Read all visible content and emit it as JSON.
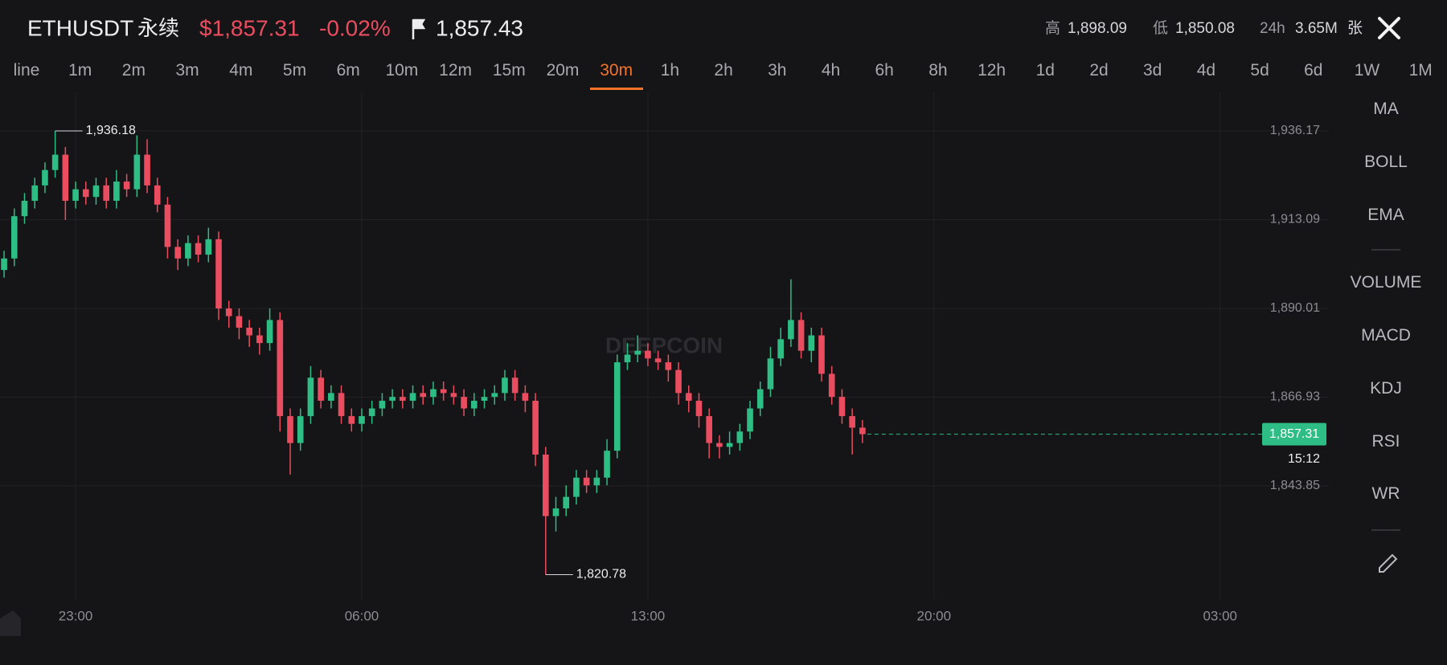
{
  "header": {
    "symbol": "ETHUSDT",
    "contract": "永续",
    "price": "$1,857.31",
    "change": "-0.02%",
    "mark_price": "1,857.43",
    "high_label": "高",
    "high": "1,898.09",
    "low_label": "低",
    "low": "1,850.08",
    "volume_label": "24h",
    "volume": "3.65M",
    "volume_unit": "张"
  },
  "timeframes": [
    "line",
    "1m",
    "2m",
    "3m",
    "4m",
    "5m",
    "6m",
    "10m",
    "12m",
    "15m",
    "20m",
    "30m",
    "1h",
    "2h",
    "3h",
    "4h",
    "6h",
    "8h",
    "12h",
    "1d",
    "2d",
    "3d",
    "4d",
    "5d",
    "6d",
    "1W",
    "1M"
  ],
  "active_timeframe": "30m",
  "indicators": [
    "MA",
    "BOLL",
    "EMA",
    "VOLUME",
    "MACD",
    "KDJ",
    "RSI",
    "WR"
  ],
  "chart_data": {
    "type": "candlestick",
    "watermark": "DEEPCOIN",
    "up_color": "#2ebd85",
    "down_color": "#ea4d5f",
    "grid": true,
    "xlim": [
      21.15,
      53.66
    ],
    "ylim": [
      1814.4,
      1946.2
    ],
    "xticks": [
      {
        "value": 23,
        "label": "23:00"
      },
      {
        "value": 30,
        "label": "06:00"
      },
      {
        "value": 37,
        "label": "13:00"
      },
      {
        "value": 44,
        "label": "20:00"
      },
      {
        "value": 51,
        "label": "03:00"
      }
    ],
    "yticks": [
      {
        "value": 1936.17,
        "label": "1,936.17"
      },
      {
        "value": 1913.09,
        "label": "1,913.09"
      },
      {
        "value": 1890.01,
        "label": "1,890.01"
      },
      {
        "value": 1866.93,
        "label": "1,866.93"
      },
      {
        "value": 1843.85,
        "label": "1,843.85"
      }
    ],
    "x": [
      21.25,
      21.5,
      21.75,
      22,
      22.25,
      22.5,
      22.75,
      23,
      23.25,
      23.5,
      23.75,
      24,
      24.25,
      24.5,
      24.75,
      25,
      25.25,
      25.5,
      25.75,
      26,
      26.25,
      26.5,
      26.75,
      27,
      27.25,
      27.5,
      27.75,
      28,
      28.25,
      28.5,
      28.75,
      29,
      29.25,
      29.5,
      29.75,
      30,
      30.25,
      30.5,
      30.75,
      31,
      31.25,
      31.5,
      31.75,
      32,
      32.25,
      32.5,
      32.75,
      33,
      33.25,
      33.5,
      33.75,
      34,
      34.25,
      34.5,
      34.75,
      35,
      35.25,
      35.5,
      35.75,
      36,
      36.25,
      36.5,
      36.75,
      37,
      37.25,
      37.5,
      37.75,
      38,
      38.25,
      38.5,
      38.75,
      39,
      39.25,
      39.5,
      39.75,
      40,
      40.25,
      40.5,
      40.75,
      41,
      41.25,
      41.5,
      41.75,
      42,
      42.25
    ],
    "open": [
      1900,
      1903,
      1914,
      1918,
      1922,
      1926,
      1930,
      1918,
      1921,
      1919,
      1922,
      1918,
      1923,
      1921,
      1930,
      1922,
      1917,
      1906,
      1903,
      1907,
      1904,
      1908,
      1890,
      1888,
      1885,
      1883,
      1881,
      1887,
      1862,
      1855,
      1862,
      1872,
      1866,
      1868,
      1862,
      1860,
      1862,
      1864,
      1866,
      1867,
      1866,
      1868,
      1867,
      1869,
      1868,
      1867,
      1864,
      1866,
      1867,
      1868,
      1872,
      1868,
      1866,
      1852,
      1836,
      1838,
      1841,
      1846,
      1844,
      1846,
      1853,
      1876,
      1878,
      1879,
      1877,
      1876,
      1874,
      1868,
      1866,
      1862,
      1855,
      1854,
      1855,
      1858,
      1864,
      1869,
      1877,
      1882,
      1887,
      1879,
      1883,
      1873,
      1867,
      1862,
      1859
    ],
    "high": [
      1905,
      1916,
      1920,
      1924,
      1928,
      1936.18,
      1932,
      1923,
      1923,
      1924,
      1924,
      1926,
      1925,
      1935,
      1934,
      1924,
      1919,
      1908,
      1909,
      1909,
      1911,
      1910,
      1892,
      1890,
      1887,
      1885,
      1890,
      1889,
      1864,
      1864,
      1875,
      1874,
      1870,
      1870,
      1864,
      1864,
      1866,
      1868,
      1869,
      1869,
      1870,
      1870,
      1871,
      1871,
      1870,
      1869,
      1868,
      1869,
      1870,
      1874,
      1874,
      1870,
      1868,
      1854,
      1841,
      1844,
      1848,
      1848,
      1848,
      1856,
      1878,
      1881,
      1883,
      1881,
      1879,
      1878,
      1876,
      1870,
      1868,
      1864,
      1857,
      1858,
      1860,
      1866,
      1871,
      1880,
      1885,
      1897.6,
      1889,
      1885,
      1885,
      1875,
      1869,
      1864,
      1861
    ],
    "low": [
      1898,
      1901,
      1912,
      1916,
      1920,
      1924,
      1913,
      1916,
      1917,
      1917,
      1916,
      1916,
      1919,
      1919,
      1920,
      1915,
      1903,
      1900,
      1901,
      1902,
      1902,
      1887,
      1885,
      1882,
      1880,
      1878,
      1879,
      1858,
      1846.8,
      1853,
      1860,
      1864,
      1864,
      1860,
      1858,
      1858,
      1860,
      1862,
      1864,
      1864,
      1864,
      1865,
      1865,
      1866,
      1865,
      1862,
      1862,
      1864,
      1865,
      1866,
      1866,
      1863,
      1849,
      1820.78,
      1832,
      1836,
      1839,
      1842,
      1842,
      1844,
      1851,
      1874,
      1876,
      1875,
      1874,
      1871,
      1865,
      1863,
      1859,
      1851,
      1851,
      1852,
      1853,
      1856,
      1862,
      1867,
      1875,
      1880,
      1877,
      1876,
      1871,
      1865,
      1860,
      1852,
      1855
    ],
    "close": [
      1903,
      1914,
      1918,
      1922,
      1926,
      1930,
      1918,
      1921,
      1919,
      1922,
      1918,
      1923,
      1921,
      1930,
      1922,
      1917,
      1906,
      1903,
      1907,
      1904,
      1908,
      1890,
      1888,
      1885,
      1883,
      1881,
      1887,
      1862,
      1855,
      1862,
      1872,
      1866,
      1868,
      1862,
      1860,
      1862,
      1864,
      1866,
      1867,
      1866,
      1868,
      1867,
      1869,
      1868,
      1867,
      1864,
      1866,
      1867,
      1868,
      1872,
      1868,
      1866,
      1852,
      1836,
      1838,
      1841,
      1846,
      1844,
      1846,
      1853,
      1876,
      1878,
      1879,
      1877,
      1876,
      1874,
      1868,
      1866,
      1862,
      1855,
      1854,
      1855,
      1858,
      1864,
      1869,
      1877,
      1882,
      1887,
      1879,
      1883,
      1873,
      1867,
      1862,
      1859,
      1857.31
    ],
    "annotations": [
      {
        "value": 1936.18,
        "label": "1,936.18"
      },
      {
        "value": 1820.78,
        "label": "1,820.78"
      }
    ],
    "last_price": {
      "value": 1857.31,
      "label": "1,857.31"
    },
    "countdown": "15:12"
  }
}
